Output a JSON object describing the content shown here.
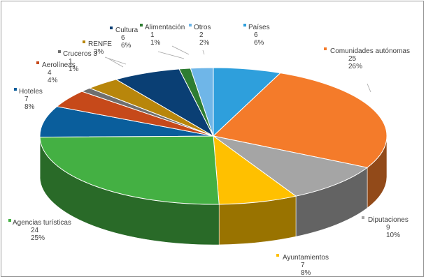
{
  "chart_data": {
    "type": "pie",
    "title": "",
    "three_d": true,
    "legend": "none",
    "slices": [
      {
        "name": "Países",
        "value": 6,
        "percent": "6%",
        "color": "#2E9FDC"
      },
      {
        "name": "Comunidades autónomas",
        "value": 25,
        "percent": "26%",
        "color": "#F47B2A"
      },
      {
        "name": "Diputaciones",
        "value": 9,
        "percent": "10%",
        "color": "#A5A5A5"
      },
      {
        "name": "Ayuntamientos",
        "value": 7,
        "percent": "8%",
        "color": "#FFC000"
      },
      {
        "name": "Agencias turísticas",
        "value": 24,
        "percent": "25%",
        "color": "#44B043"
      },
      {
        "name": "Hoteles",
        "value": 7,
        "percent": "8%",
        "color": "#0A5E9C"
      },
      {
        "name": "Aerolíneas",
        "value": 4,
        "percent": "4%",
        "color": "#C6491A"
      },
      {
        "name": "Cruceros",
        "value": 1,
        "percent": "1%",
        "color": "#6F6F6F"
      },
      {
        "name": "RENFE",
        "value": 3,
        "percent": "3%",
        "color": "#B8860B"
      },
      {
        "name": "Cultura",
        "value": 6,
        "percent": "6%",
        "color": "#0A3F74"
      },
      {
        "name": "Alimentación",
        "value": 1,
        "percent": "1%",
        "color": "#2E7D32"
      },
      {
        "name": "Otros",
        "value": 2,
        "percent": "2%",
        "color": "#6FB6E8"
      }
    ]
  }
}
